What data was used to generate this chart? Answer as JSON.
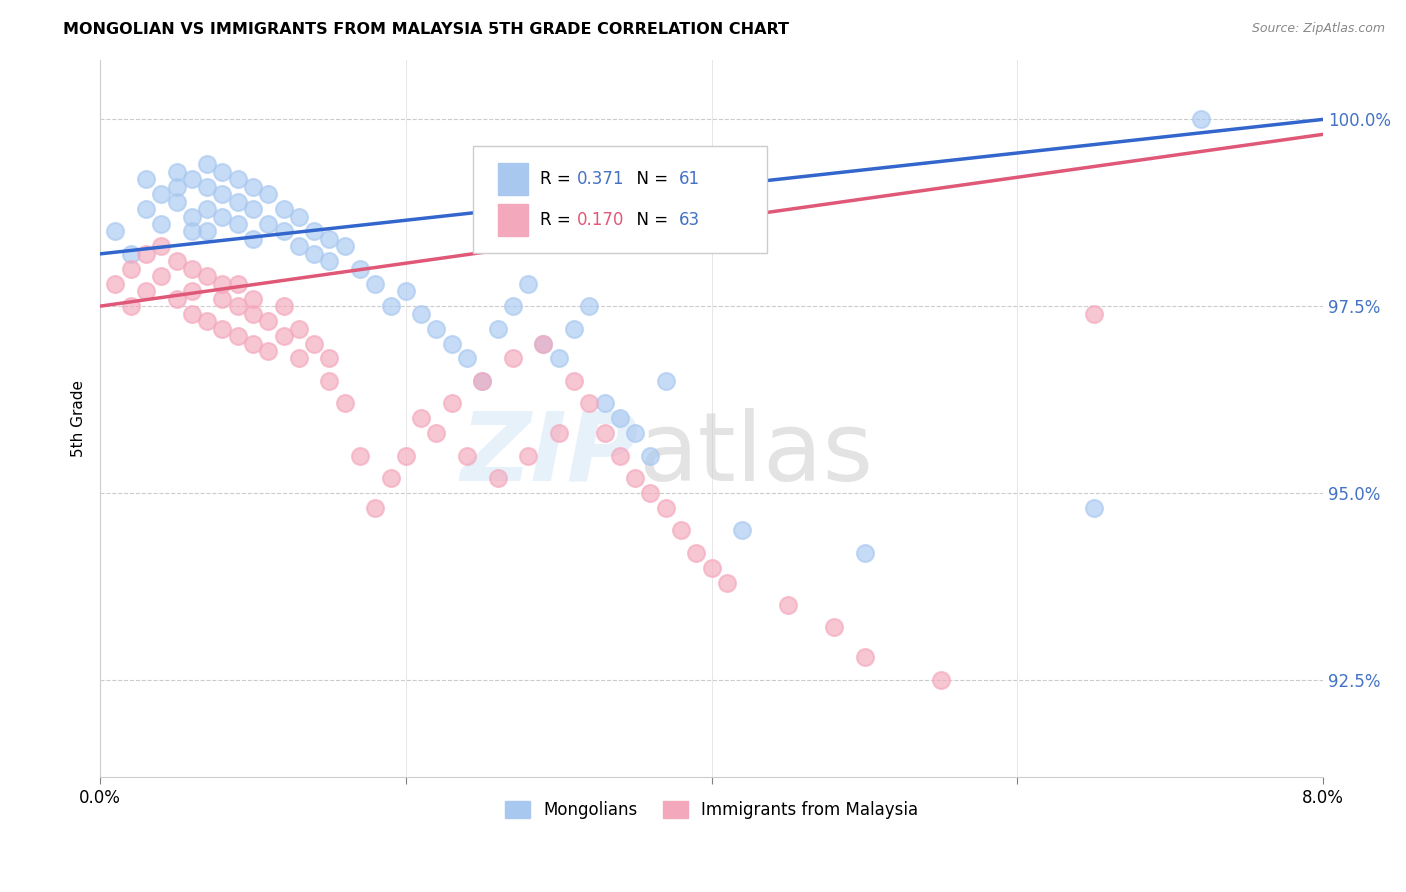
{
  "title": "MONGOLIAN VS IMMIGRANTS FROM MALAYSIA 5TH GRADE CORRELATION CHART",
  "source": "Source: ZipAtlas.com",
  "ylabel": "5th Grade",
  "R_mongolian": 0.371,
  "N_mongolian": 61,
  "R_malaysia": 0.17,
  "N_malaysia": 63,
  "color_mongolian": "#A8C8F0",
  "color_malaysia": "#F4A8BC",
  "line_color_mongolian": "#3366CC",
  "line_color_malaysia": "#E05878",
  "ytick_color": "#4472C4",
  "xmin": 0.0,
  "xmax": 0.08,
  "ymin": 91.2,
  "ymax": 100.8,
  "yticks": [
    92.5,
    95.0,
    97.5,
    100.0
  ],
  "ytick_labels": [
    "92.5%",
    "95.0%",
    "97.5%",
    "100.0%"
  ],
  "mongolian_x": [
    0.001,
    0.002,
    0.003,
    0.003,
    0.004,
    0.004,
    0.005,
    0.005,
    0.005,
    0.006,
    0.006,
    0.006,
    0.007,
    0.007,
    0.007,
    0.007,
    0.008,
    0.008,
    0.008,
    0.009,
    0.009,
    0.009,
    0.01,
    0.01,
    0.01,
    0.011,
    0.011,
    0.012,
    0.012,
    0.013,
    0.013,
    0.014,
    0.014,
    0.015,
    0.015,
    0.016,
    0.017,
    0.018,
    0.019,
    0.02,
    0.021,
    0.022,
    0.023,
    0.024,
    0.025,
    0.026,
    0.027,
    0.028,
    0.029,
    0.03,
    0.031,
    0.032,
    0.033,
    0.034,
    0.035,
    0.036,
    0.037,
    0.042,
    0.05,
    0.065,
    0.072
  ],
  "mongolian_y": [
    98.5,
    98.2,
    99.2,
    98.8,
    99.0,
    98.6,
    99.3,
    98.9,
    99.1,
    98.5,
    99.2,
    98.7,
    99.4,
    99.1,
    98.8,
    98.5,
    99.3,
    99.0,
    98.7,
    99.2,
    98.9,
    98.6,
    99.1,
    98.8,
    98.4,
    99.0,
    98.6,
    98.8,
    98.5,
    98.7,
    98.3,
    98.5,
    98.2,
    98.4,
    98.1,
    98.3,
    98.0,
    97.8,
    97.5,
    97.7,
    97.4,
    97.2,
    97.0,
    96.8,
    96.5,
    97.2,
    97.5,
    97.8,
    97.0,
    96.8,
    97.2,
    97.5,
    96.2,
    96.0,
    95.8,
    95.5,
    96.5,
    94.5,
    94.2,
    94.8,
    100.0
  ],
  "malaysia_x": [
    0.001,
    0.002,
    0.002,
    0.003,
    0.003,
    0.004,
    0.004,
    0.005,
    0.005,
    0.006,
    0.006,
    0.006,
    0.007,
    0.007,
    0.008,
    0.008,
    0.008,
    0.009,
    0.009,
    0.009,
    0.01,
    0.01,
    0.01,
    0.011,
    0.011,
    0.012,
    0.012,
    0.013,
    0.013,
    0.014,
    0.015,
    0.015,
    0.016,
    0.017,
    0.018,
    0.019,
    0.02,
    0.021,
    0.022,
    0.023,
    0.024,
    0.025,
    0.026,
    0.027,
    0.028,
    0.029,
    0.03,
    0.031,
    0.032,
    0.033,
    0.034,
    0.035,
    0.036,
    0.037,
    0.038,
    0.039,
    0.04,
    0.041,
    0.045,
    0.048,
    0.05,
    0.055,
    0.065
  ],
  "malaysia_y": [
    97.8,
    97.5,
    98.0,
    97.7,
    98.2,
    97.9,
    98.3,
    97.6,
    98.1,
    97.4,
    98.0,
    97.7,
    97.3,
    97.9,
    97.6,
    97.2,
    97.8,
    97.5,
    97.1,
    97.8,
    97.4,
    97.0,
    97.6,
    97.3,
    96.9,
    97.5,
    97.1,
    97.2,
    96.8,
    97.0,
    96.5,
    96.8,
    96.2,
    95.5,
    94.8,
    95.2,
    95.5,
    96.0,
    95.8,
    96.2,
    95.5,
    96.5,
    95.2,
    96.8,
    95.5,
    97.0,
    95.8,
    96.5,
    96.2,
    95.8,
    95.5,
    95.2,
    95.0,
    94.8,
    94.5,
    94.2,
    94.0,
    93.8,
    93.5,
    93.2,
    92.8,
    92.5,
    97.4
  ],
  "line_blue_x0": 0.0,
  "line_blue_y0": 98.2,
  "line_blue_x1": 0.08,
  "line_blue_y1": 100.0,
  "line_pink_x0": 0.0,
  "line_pink_y0": 97.5,
  "line_pink_x1": 0.08,
  "line_pink_y1": 99.8
}
